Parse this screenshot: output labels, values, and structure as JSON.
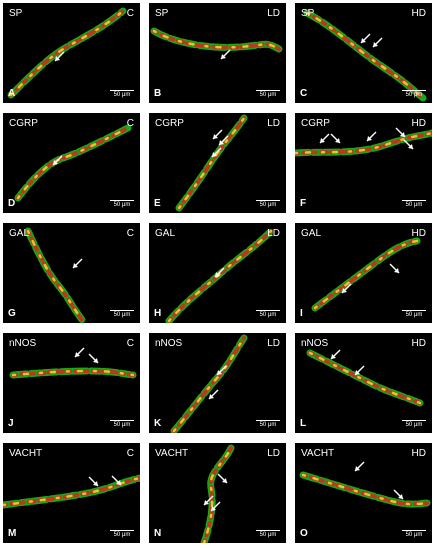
{
  "scale_bar_label": "50 μm",
  "panels": [
    {
      "letter": "A",
      "marker": "SP",
      "group": "C"
    },
    {
      "letter": "B",
      "marker": "SP",
      "group": "LD"
    },
    {
      "letter": "C",
      "marker": "SP",
      "group": "HD"
    },
    {
      "letter": "D",
      "marker": "CGRP",
      "group": "C"
    },
    {
      "letter": "E",
      "marker": "CGRP",
      "group": "LD"
    },
    {
      "letter": "F",
      "marker": "CGRP",
      "group": "HD"
    },
    {
      "letter": "G",
      "marker": "GAL",
      "group": "C"
    },
    {
      "letter": "H",
      "marker": "GAL",
      "group": "LD"
    },
    {
      "letter": "I",
      "marker": "GAL",
      "group": "HD"
    },
    {
      "letter": "J",
      "marker": "nNOS",
      "group": "C"
    },
    {
      "letter": "K",
      "marker": "nNOS",
      "group": "LD"
    },
    {
      "letter": "L",
      "marker": "nNOS",
      "group": "HD"
    },
    {
      "letter": "M",
      "marker": "VACHT",
      "group": "C"
    },
    {
      "letter": "N",
      "marker": "VACHT",
      "group": "LD"
    },
    {
      "letter": "O",
      "marker": "VACHT",
      "group": "HD"
    }
  ],
  "colors": {
    "background": "#000000",
    "stain_green": "#19c81e",
    "stain_red": "#d2281e",
    "colocalized_yellow": "#f0dc32",
    "annotation": "#ffffff"
  },
  "icons": [
    "arrow-icon",
    "scale-bar-icon"
  ]
}
